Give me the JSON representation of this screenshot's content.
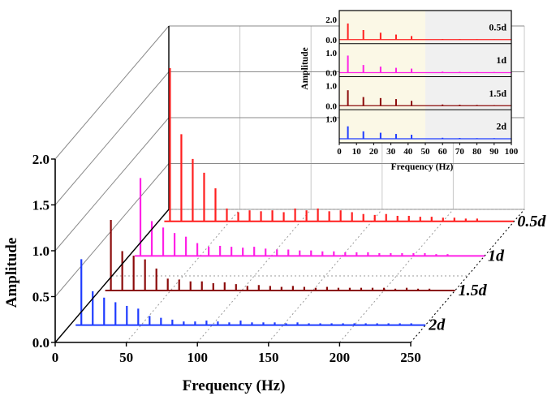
{
  "chart_data": [
    {
      "type": "line",
      "subtype": "3d-waterfall-spectrum",
      "xlabel": "Frequency (Hz)",
      "ylabel": "Amplitude",
      "xlim": [
        0,
        250
      ],
      "ylim": [
        0,
        2.0
      ],
      "x_ticks": [
        "0",
        "50",
        "100",
        "150",
        "200",
        "250"
      ],
      "y_ticks": [
        "0.0",
        "0.5",
        "1.0",
        "1.5",
        "2.0"
      ],
      "grid": true,
      "series": [
        {
          "name": "2d",
          "color": "#1f3cff",
          "peaks": [
            {
              "x": 8,
              "y": 0.72
            },
            {
              "x": 16,
              "y": 0.37
            },
            {
              "x": 24,
              "y": 0.3
            },
            {
              "x": 32,
              "y": 0.25
            },
            {
              "x": 40,
              "y": 0.21
            },
            {
              "x": 48,
              "y": 0.18
            },
            {
              "x": 56,
              "y": 0.1
            },
            {
              "x": 64,
              "y": 0.08
            },
            {
              "x": 72,
              "y": 0.06
            },
            {
              "x": 80,
              "y": 0.04
            },
            {
              "x": 88,
              "y": 0.04
            },
            {
              "x": 96,
              "y": 0.05
            },
            {
              "x": 104,
              "y": 0.04
            },
            {
              "x": 112,
              "y": 0.03
            },
            {
              "x": 120,
              "y": 0.05
            },
            {
              "x": 128,
              "y": 0.03
            },
            {
              "x": 136,
              "y": 0.03
            },
            {
              "x": 144,
              "y": 0.03
            },
            {
              "x": 152,
              "y": 0.02
            },
            {
              "x": 160,
              "y": 0.03
            },
            {
              "x": 168,
              "y": 0.02
            },
            {
              "x": 176,
              "y": 0.02
            },
            {
              "x": 184,
              "y": 0.02
            },
            {
              "x": 192,
              "y": 0.02
            },
            {
              "x": 200,
              "y": 0.02
            },
            {
              "x": 208,
              "y": 0.02
            },
            {
              "x": 216,
              "y": 0.02
            },
            {
              "x": 224,
              "y": 0.02
            },
            {
              "x": 232,
              "y": 0.02
            },
            {
              "x": 240,
              "y": 0.02
            }
          ]
        },
        {
          "name": "1.5d",
          "color": "#8b0a0a",
          "peaks": [
            {
              "x": 8,
              "y": 0.77
            },
            {
              "x": 16,
              "y": 0.43
            },
            {
              "x": 24,
              "y": 0.38
            },
            {
              "x": 32,
              "y": 0.34
            },
            {
              "x": 40,
              "y": 0.24
            },
            {
              "x": 48,
              "y": 0.13
            },
            {
              "x": 56,
              "y": 0.12
            },
            {
              "x": 64,
              "y": 0.1
            },
            {
              "x": 72,
              "y": 0.1
            },
            {
              "x": 80,
              "y": 0.08
            },
            {
              "x": 88,
              "y": 0.09
            },
            {
              "x": 96,
              "y": 0.07
            },
            {
              "x": 104,
              "y": 0.05
            },
            {
              "x": 112,
              "y": 0.06
            },
            {
              "x": 120,
              "y": 0.05
            },
            {
              "x": 128,
              "y": 0.04
            },
            {
              "x": 136,
              "y": 0.05
            },
            {
              "x": 144,
              "y": 0.04
            },
            {
              "x": 152,
              "y": 0.03
            },
            {
              "x": 160,
              "y": 0.04
            },
            {
              "x": 168,
              "y": 0.03
            },
            {
              "x": 176,
              "y": 0.03
            },
            {
              "x": 184,
              "y": 0.03
            },
            {
              "x": 192,
              "y": 0.03
            },
            {
              "x": 200,
              "y": 0.03
            },
            {
              "x": 208,
              "y": 0.02
            },
            {
              "x": 216,
              "y": 0.03
            },
            {
              "x": 224,
              "y": 0.02
            },
            {
              "x": 232,
              "y": 0.02
            }
          ]
        },
        {
          "name": "1d",
          "color": "#ff21e6",
          "peaks": [
            {
              "x": 8,
              "y": 0.85
            },
            {
              "x": 16,
              "y": 0.38
            },
            {
              "x": 24,
              "y": 0.31
            },
            {
              "x": 32,
              "y": 0.25
            },
            {
              "x": 40,
              "y": 0.21
            },
            {
              "x": 48,
              "y": 0.14
            },
            {
              "x": 56,
              "y": 0.1
            },
            {
              "x": 64,
              "y": 0.11
            },
            {
              "x": 72,
              "y": 0.1
            },
            {
              "x": 80,
              "y": 0.09
            },
            {
              "x": 88,
              "y": 0.1
            },
            {
              "x": 96,
              "y": 0.08
            },
            {
              "x": 104,
              "y": 0.07
            },
            {
              "x": 112,
              "y": 0.07
            },
            {
              "x": 120,
              "y": 0.06
            },
            {
              "x": 128,
              "y": 0.06
            },
            {
              "x": 136,
              "y": 0.05
            },
            {
              "x": 144,
              "y": 0.05
            },
            {
              "x": 152,
              "y": 0.04
            },
            {
              "x": 160,
              "y": 0.04
            },
            {
              "x": 168,
              "y": 0.04
            },
            {
              "x": 176,
              "y": 0.03
            },
            {
              "x": 184,
              "y": 0.03
            },
            {
              "x": 192,
              "y": 0.03
            },
            {
              "x": 200,
              "y": 0.03
            },
            {
              "x": 208,
              "y": 0.03
            },
            {
              "x": 216,
              "y": 0.02
            },
            {
              "x": 224,
              "y": 0.02
            }
          ]
        },
        {
          "name": "0.5d",
          "color": "#ff1f1f",
          "peaks": [
            {
              "x": 8,
              "y": 1.67
            },
            {
              "x": 16,
              "y": 0.95
            },
            {
              "x": 24,
              "y": 0.68
            },
            {
              "x": 32,
              "y": 0.53
            },
            {
              "x": 40,
              "y": 0.36
            },
            {
              "x": 48,
              "y": 0.14
            },
            {
              "x": 56,
              "y": 0.1
            },
            {
              "x": 64,
              "y": 0.12
            },
            {
              "x": 72,
              "y": 0.11
            },
            {
              "x": 80,
              "y": 0.12
            },
            {
              "x": 88,
              "y": 0.1
            },
            {
              "x": 96,
              "y": 0.14
            },
            {
              "x": 104,
              "y": 0.12
            },
            {
              "x": 112,
              "y": 0.14
            },
            {
              "x": 120,
              "y": 0.11
            },
            {
              "x": 128,
              "y": 0.12
            },
            {
              "x": 136,
              "y": 0.1
            },
            {
              "x": 144,
              "y": 0.08
            },
            {
              "x": 152,
              "y": 0.07
            },
            {
              "x": 160,
              "y": 0.08
            },
            {
              "x": 168,
              "y": 0.06
            },
            {
              "x": 176,
              "y": 0.06
            },
            {
              "x": 184,
              "y": 0.05
            },
            {
              "x": 192,
              "y": 0.05
            },
            {
              "x": 200,
              "y": 0.04
            },
            {
              "x": 208,
              "y": 0.04
            },
            {
              "x": 216,
              "y": 0.03
            },
            {
              "x": 224,
              "y": 0.03
            }
          ]
        }
      ]
    },
    {
      "type": "line",
      "subtype": "inset-stacked-spectra",
      "xlabel": "Frequency (Hz)",
      "ylabel": "Amplitude",
      "xlim": [
        0,
        100
      ],
      "x_ticks": [
        "0",
        "10",
        "20",
        "30",
        "40",
        "50",
        "60",
        "70",
        "80",
        "90",
        "100"
      ],
      "highlight_range": [
        0,
        50
      ],
      "highlight_color": "#fbf8e6",
      "shade_color": "#f0f0f0",
      "panels": [
        {
          "name": "0.5d",
          "color": "#ff1f1f",
          "ylim": [
            0,
            2.0
          ],
          "y_ticks": [
            "0.0",
            "2.0"
          ],
          "peaks": [
            {
              "x": 5,
              "y": 1.6
            },
            {
              "x": 14,
              "y": 0.95
            },
            {
              "x": 24,
              "y": 0.68
            },
            {
              "x": 33,
              "y": 0.5
            },
            {
              "x": 42,
              "y": 0.35
            },
            {
              "x": 60,
              "y": 0.06
            },
            {
              "x": 70,
              "y": 0.05
            },
            {
              "x": 80,
              "y": 0.04
            },
            {
              "x": 90,
              "y": 0.03
            }
          ]
        },
        {
          "name": "1d",
          "color": "#ff21e6",
          "ylim": [
            0,
            1.0
          ],
          "y_ticks": [
            "0.0",
            "1.0"
          ],
          "peaks": [
            {
              "x": 5,
              "y": 0.85
            },
            {
              "x": 14,
              "y": 0.38
            },
            {
              "x": 24,
              "y": 0.3
            },
            {
              "x": 33,
              "y": 0.24
            },
            {
              "x": 42,
              "y": 0.2
            },
            {
              "x": 60,
              "y": 0.05
            },
            {
              "x": 70,
              "y": 0.04
            },
            {
              "x": 80,
              "y": 0.03
            },
            {
              "x": 90,
              "y": 0.03
            }
          ]
        },
        {
          "name": "1.5d",
          "color": "#8b0a0a",
          "ylim": [
            0,
            1.0
          ],
          "y_ticks": [
            "0.0",
            "1.0"
          ],
          "peaks": [
            {
              "x": 5,
              "y": 0.77
            },
            {
              "x": 14,
              "y": 0.43
            },
            {
              "x": 24,
              "y": 0.38
            },
            {
              "x": 33,
              "y": 0.33
            },
            {
              "x": 42,
              "y": 0.24
            },
            {
              "x": 60,
              "y": 0.06
            },
            {
              "x": 70,
              "y": 0.05
            },
            {
              "x": 80,
              "y": 0.04
            },
            {
              "x": 90,
              "y": 0.03
            }
          ]
        },
        {
          "name": "2d",
          "color": "#1f3cff",
          "ylim": [
            0,
            1.0
          ],
          "y_ticks": [
            "1.0"
          ],
          "peaks": [
            {
              "x": 5,
              "y": 0.62
            },
            {
              "x": 14,
              "y": 0.37
            },
            {
              "x": 24,
              "y": 0.3
            },
            {
              "x": 33,
              "y": 0.24
            },
            {
              "x": 42,
              "y": 0.2
            },
            {
              "x": 60,
              "y": 0.05
            },
            {
              "x": 70,
              "y": 0.04
            },
            {
              "x": 80,
              "y": 0.03
            },
            {
              "x": 90,
              "y": 0.03
            }
          ]
        }
      ]
    }
  ]
}
